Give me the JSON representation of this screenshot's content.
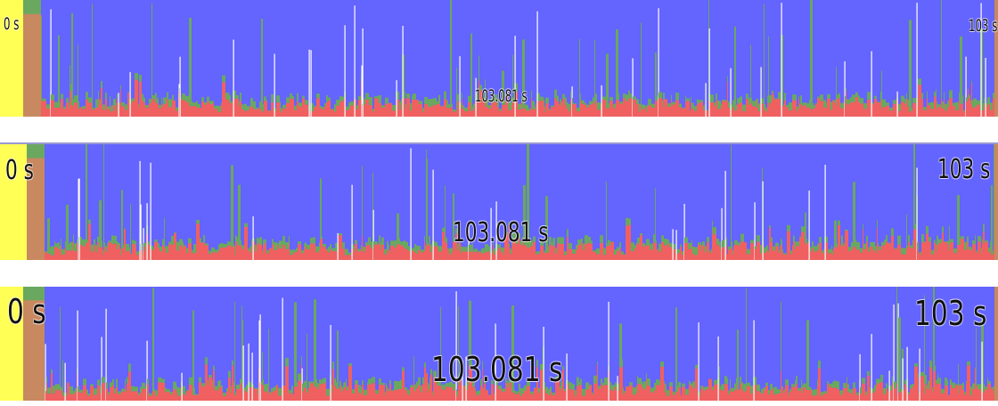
{
  "colors": {
    "idle": "#6464ff",
    "user": "#f06060",
    "system": "#6aa860",
    "iowait": "#ffffff",
    "start": "#ffff55",
    "startBand": "#c88860"
  },
  "panels": [
    {
      "start_label": "0 s",
      "cursor_label": "103.081 s",
      "end_label": "103 s"
    },
    {
      "start_label": "0 s",
      "cursor_label": "103.081 s",
      "end_label": "103 s"
    },
    {
      "start_label": "0 s",
      "cursor_label": "103.081 s",
      "end_label": "103 s"
    }
  ],
  "chart_data": {
    "type": "area",
    "title": "",
    "xlabel": "",
    "ylabel": "",
    "x_range_seconds": [
      0,
      103
    ],
    "cursor_seconds": 103.081,
    "grid": false,
    "legend": "none",
    "series": [
      {
        "color": "#6464ff",
        "values_fraction_pattern": [
          1.0
        ]
      },
      {
        "color": "#f06060",
        "values_fraction_pattern": [
          0.1,
          0.08,
          0.15,
          0.06,
          0.12,
          0.09,
          0.18,
          0.07,
          0.11,
          0.14
        ]
      },
      {
        "color": "#6aa860",
        "values_fraction_pattern": [
          0.05,
          0.07,
          0.04,
          0.1,
          0.06,
          0.08,
          0.05,
          0.09
        ]
      },
      {
        "color": "#ffffff",
        "values_fraction_pattern": [
          0.0,
          0.3,
          0.0,
          0.6,
          0.0,
          0.9,
          0.0,
          0.4
        ]
      }
    ]
  }
}
